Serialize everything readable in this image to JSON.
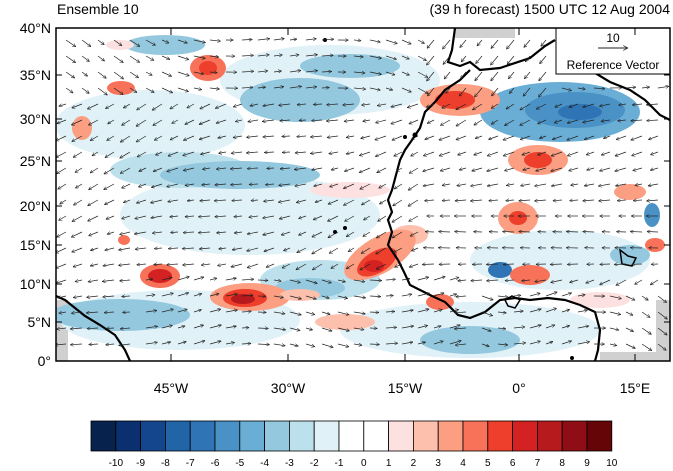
{
  "title_left": "Ensemble 10",
  "title_right": "(39 h forecast) 1500 UTC 12 Aug 2004",
  "lat_labels": [
    "0°",
    "5°N",
    "10°N",
    "15°N",
    "20°N",
    "25°N",
    "30°N",
    "35°N",
    "40°N"
  ],
  "lon_labels": [
    "45°W",
    "30°W",
    "15°W",
    "0°",
    "15°E"
  ],
  "reference_vector": {
    "value": "10",
    "label": "Reference Vector"
  },
  "colorbar": {
    "labels": [
      "-10",
      "-9",
      "-8",
      "-7",
      "-6",
      "-5",
      "-4",
      "-3",
      "-2",
      "-1",
      "0",
      "1",
      "2",
      "3",
      "4",
      "5",
      "6",
      "7",
      "8",
      "9",
      "10"
    ],
    "colors": [
      "#08224e",
      "#0a3070",
      "#14468e",
      "#2164a8",
      "#2f74b5",
      "#4a92c6",
      "#6aaed6",
      "#94c8de",
      "#bde1ec",
      "#e0f2f8",
      "#ffffff",
      "#ffffff",
      "#fde0e0",
      "#fcc0ad",
      "#fb9e82",
      "#f77258",
      "#ed3f2c",
      "#d42121",
      "#b61a1c",
      "#8f0d15",
      "#660508"
    ]
  },
  "colors": {
    "land_mask": "#d0d0d0",
    "coast": "#000000",
    "vector": "#222222"
  }
}
